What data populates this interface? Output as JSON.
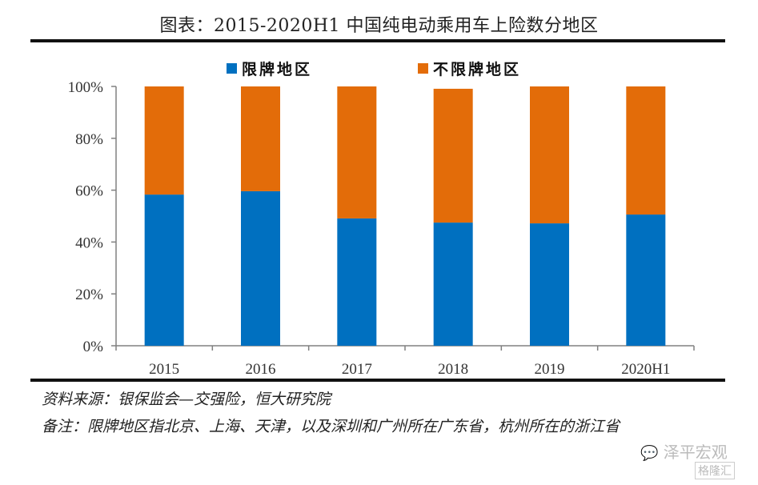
{
  "chart_data": {
    "type": "bar",
    "stacked": true,
    "title": "图表：2015-2020H1 中国纯电动乘用车上险数分地区",
    "xlabel": "",
    "ylabel": "",
    "ylim": [
      0,
      100
    ],
    "yticks": [
      "0%",
      "20%",
      "40%",
      "60%",
      "80%",
      "100%"
    ],
    "categories": [
      "2015",
      "2016",
      "2017",
      "2018",
      "2019",
      "2020H1"
    ],
    "series": [
      {
        "name": "限牌地区",
        "color": "#0070C0",
        "values": [
          58.3,
          59.6,
          49.1,
          47.5,
          47.2,
          50.6
        ]
      },
      {
        "name": "不限牌地区",
        "color": "#E36C09",
        "values": [
          41.7,
          40.4,
          50.9,
          51.6,
          52.8,
          49.4
        ]
      }
    ],
    "legend_position": "top",
    "grid": false
  },
  "notes": {
    "source": "资料来源：银保监会—交强险，恒大研究院",
    "remark": "备注：限牌地区指北京、上海、天津，以及深圳和广州所在广东省，杭州所在的浙江省"
  },
  "watermark": {
    "account": "泽平宏观",
    "logo_text": "格隆汇"
  }
}
